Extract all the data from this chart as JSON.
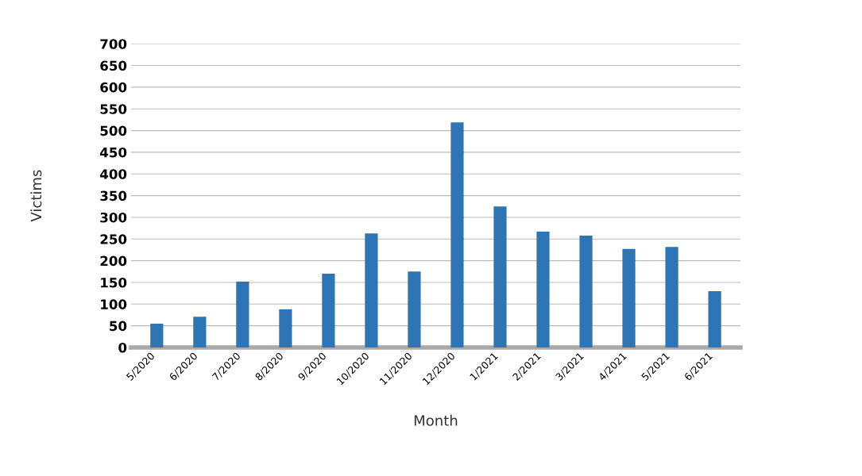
{
  "chart_data": {
    "type": "bar",
    "xlabel": "Month",
    "ylabel": "Victims",
    "categories": [
      "5/2020",
      "6/2020",
      "7/2020",
      "8/2020",
      "9/2020",
      "10/2020",
      "11/2020",
      "12/2020",
      "1/2021",
      "2/2021",
      "3/2021",
      "4/2021",
      "5/2021",
      "6/2021"
    ],
    "values": [
      55,
      71,
      152,
      88,
      170,
      263,
      175,
      519,
      325,
      267,
      258,
      227,
      232,
      130
    ],
    "color": "#2e75b6",
    "ylim": [
      0,
      700
    ],
    "yticks": [
      0,
      50,
      100,
      150,
      200,
      250,
      300,
      350,
      400,
      450,
      500,
      550,
      600,
      650,
      700
    ],
    "grid": "y",
    "legend": false
  }
}
